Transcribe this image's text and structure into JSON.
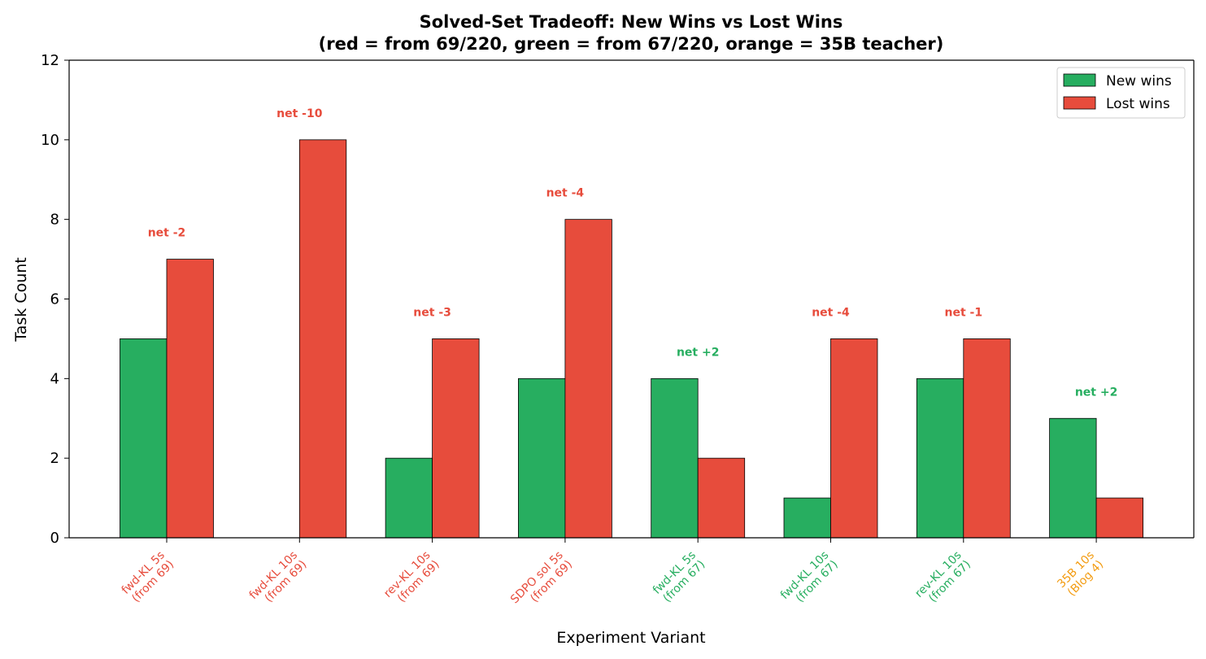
{
  "chart_data": {
    "type": "bar",
    "title": "Solved-Set Tradeoff: New Wins vs Lost Wins",
    "subtitle": "(red = from 69/220, green = from 67/220, orange = 35B teacher)",
    "xlabel": "Experiment Variant",
    "ylabel": "Task Count",
    "ylim": [
      0,
      12
    ],
    "yticks": [
      0,
      2,
      4,
      6,
      8,
      10,
      12
    ],
    "legend_position": "top-right",
    "categories": [
      {
        "line1": "fwd-KL 5s",
        "line2": "(from 69)",
        "group": "red"
      },
      {
        "line1": "fwd-KL 10s",
        "line2": "(from 69)",
        "group": "red"
      },
      {
        "line1": "rev-KL 10s",
        "line2": "(from 69)",
        "group": "red"
      },
      {
        "line1": "SDPO sol 5s",
        "line2": "(from 69)",
        "group": "red"
      },
      {
        "line1": "fwd-KL 5s",
        "line2": "(from 67)",
        "group": "green"
      },
      {
        "line1": "fwd-KL 10s",
        "line2": "(from 67)",
        "group": "green"
      },
      {
        "line1": "rev-KL 10s",
        "line2": "(from 67)",
        "group": "green"
      },
      {
        "line1": "35B 10s",
        "line2": "(Blog 4)",
        "group": "orange"
      }
    ],
    "series": [
      {
        "name": "New wins",
        "color": "#27ae60",
        "values": [
          5,
          0,
          2,
          4,
          4,
          1,
          4,
          3
        ]
      },
      {
        "name": "Lost wins",
        "color": "#e74c3c",
        "values": [
          7,
          10,
          5,
          8,
          2,
          5,
          5,
          1
        ]
      }
    ],
    "net_labels": [
      "net -2",
      "net -10",
      "net -3",
      "net -4",
      "net +2",
      "net -4",
      "net -1",
      "net +2"
    ],
    "colors": {
      "red": "#e74c3c",
      "green": "#27ae60",
      "orange": "#f39c12",
      "negative": "#e74c3c",
      "positive": "#27ae60"
    }
  }
}
